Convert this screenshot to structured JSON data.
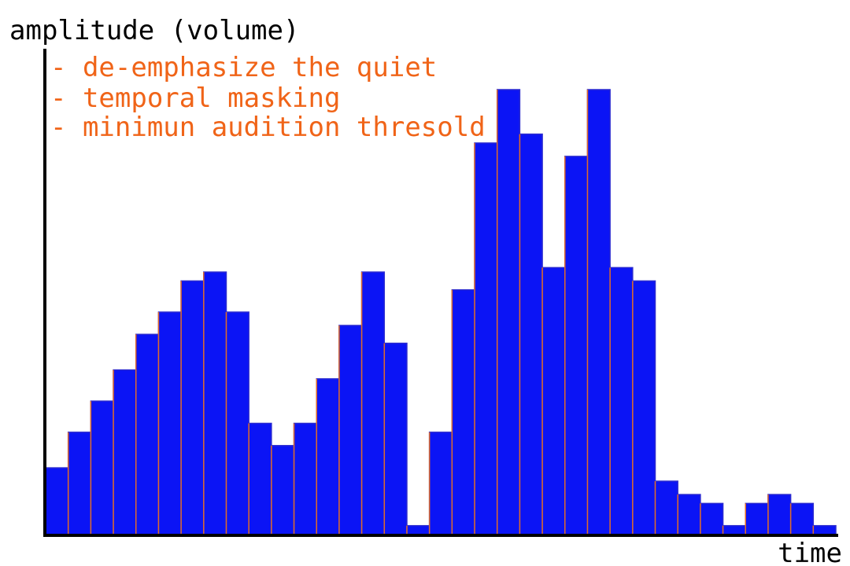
{
  "chart_data": {
    "type": "bar",
    "title": "",
    "xlabel": "time",
    "ylabel": "amplitude (volume)",
    "ylim": [
      0,
      100
    ],
    "annotations": [
      "- de-emphasize the quiet",
      "- temporal masking",
      "- minimun audition thresold"
    ],
    "values": [
      15,
      23,
      30,
      37,
      45,
      50,
      57,
      59,
      50,
      25,
      20,
      25,
      35,
      47,
      59,
      43,
      2,
      23,
      55,
      88,
      100,
      90,
      60,
      85,
      100,
      60,
      57,
      12,
      9,
      7,
      2,
      7,
      9,
      7,
      2
    ],
    "colors": {
      "bar_fill": "#0b14f5",
      "bar_stroke": "#2a2ad0",
      "bar_divider": "#e06b2a",
      "annotation": "#f06418",
      "axis": "#000000"
    }
  }
}
